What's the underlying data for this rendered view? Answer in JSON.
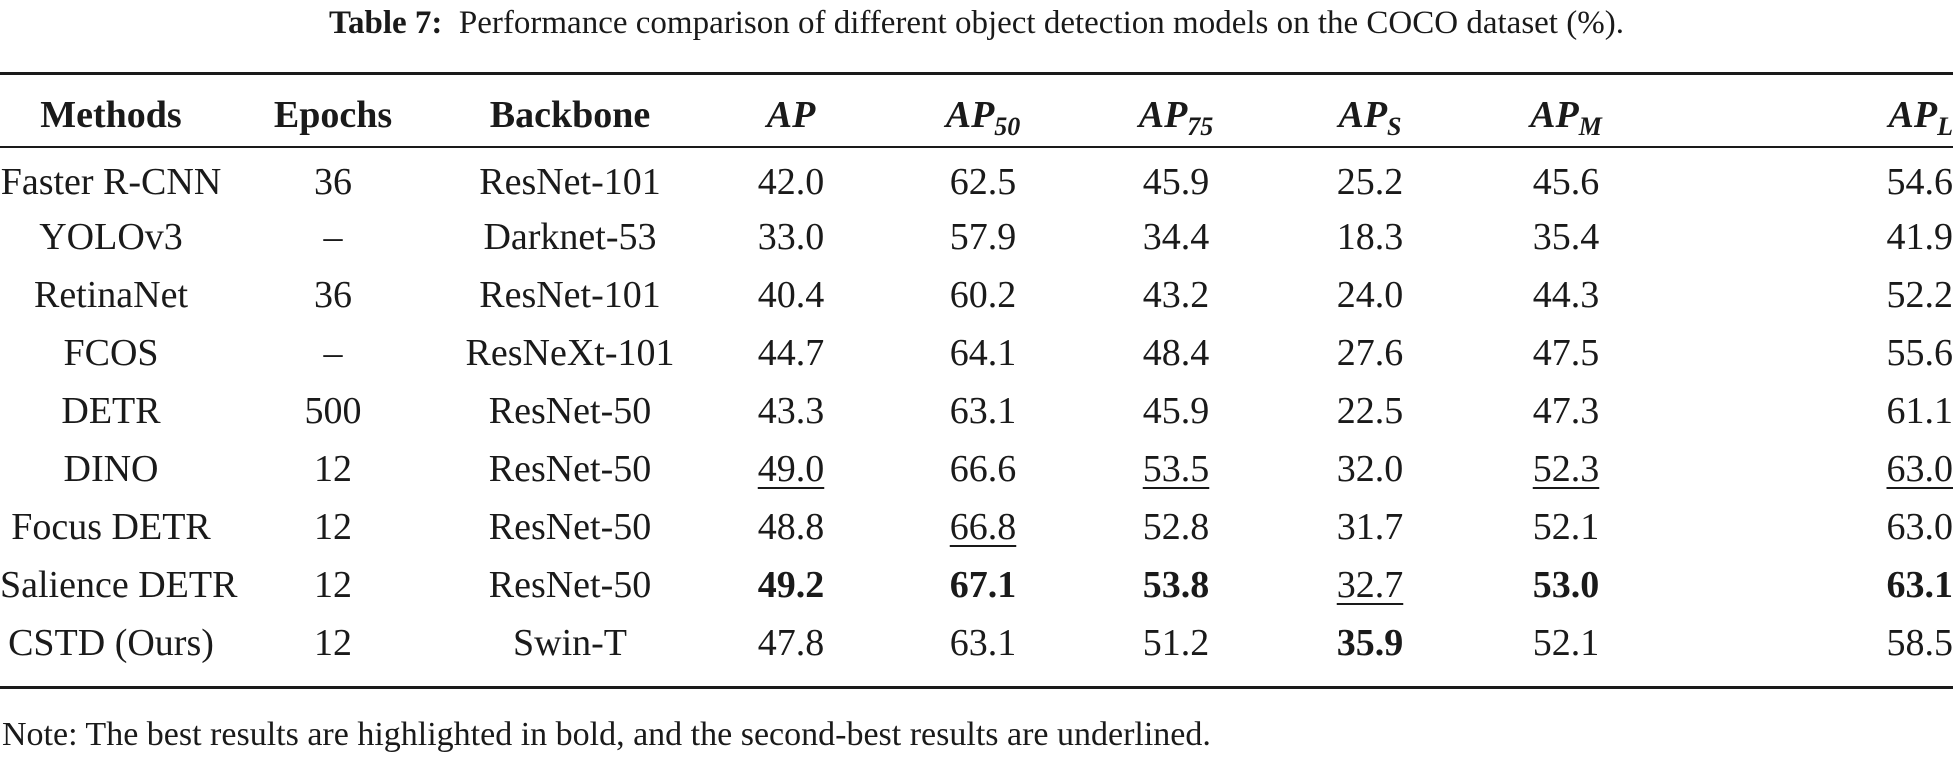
{
  "caption": {
    "label": "Table 7:",
    "text": "Performance comparison of different object detection models on the COCO dataset (%)."
  },
  "headers": {
    "methods": "Methods",
    "epochs": "Epochs",
    "backbone": "Backbone",
    "ap": "AP",
    "ap50": {
      "base": "AP",
      "sub": "50"
    },
    "ap75": {
      "base": "AP",
      "sub": "75"
    },
    "aps": {
      "base": "AP",
      "sub": "S"
    },
    "apm": {
      "base": "AP",
      "sub": "M"
    },
    "apl": {
      "base": "AP",
      "sub": "L"
    }
  },
  "rows": [
    {
      "cells": [
        "Faster R-CNN",
        "36",
        "ResNet-101",
        "42.0",
        "62.5",
        "45.9",
        "25.2",
        "45.6",
        "54.6"
      ],
      "best": [],
      "second": []
    },
    {
      "cells": [
        "YOLOv3",
        "–",
        "Darknet-53",
        "33.0",
        "57.9",
        "34.4",
        "18.3",
        "35.4",
        "41.9"
      ],
      "best": [],
      "second": []
    },
    {
      "cells": [
        "RetinaNet",
        "36",
        "ResNet-101",
        "40.4",
        "60.2",
        "43.2",
        "24.0",
        "44.3",
        "52.2"
      ],
      "best": [],
      "second": []
    },
    {
      "cells": [
        "FCOS",
        "–",
        "ResNeXt-101",
        "44.7",
        "64.1",
        "48.4",
        "27.6",
        "47.5",
        "55.6"
      ],
      "best": [],
      "second": []
    },
    {
      "cells": [
        "DETR",
        "500",
        "ResNet-50",
        "43.3",
        "63.1",
        "45.9",
        "22.5",
        "47.3",
        "61.1"
      ],
      "best": [],
      "second": []
    },
    {
      "cells": [
        "DINO",
        "12",
        "ResNet-50",
        "49.0",
        "66.6",
        "53.5",
        "32.0",
        "52.3",
        "63.0"
      ],
      "best": [],
      "second": [
        3,
        5,
        7,
        8
      ]
    },
    {
      "cells": [
        "Focus DETR",
        "12",
        "ResNet-50",
        "48.8",
        "66.8",
        "52.8",
        "31.7",
        "52.1",
        "63.0"
      ],
      "best": [],
      "second": [
        4
      ]
    },
    {
      "cells": [
        "Salience DETR",
        "12",
        "ResNet-50",
        "49.2",
        "67.1",
        "53.8",
        "32.7",
        "53.0",
        "63.1"
      ],
      "best": [
        3,
        4,
        5,
        7,
        8
      ],
      "second": [
        6
      ]
    },
    {
      "cells": [
        "CSTD (Ours)",
        "12",
        "Swin-T",
        "47.8",
        "63.1",
        "51.2",
        "35.9",
        "52.1",
        "58.5"
      ],
      "best": [
        6
      ],
      "second": []
    }
  ],
  "note": "Note: The best results are highlighted in bold, and the second-best results are underlined."
}
